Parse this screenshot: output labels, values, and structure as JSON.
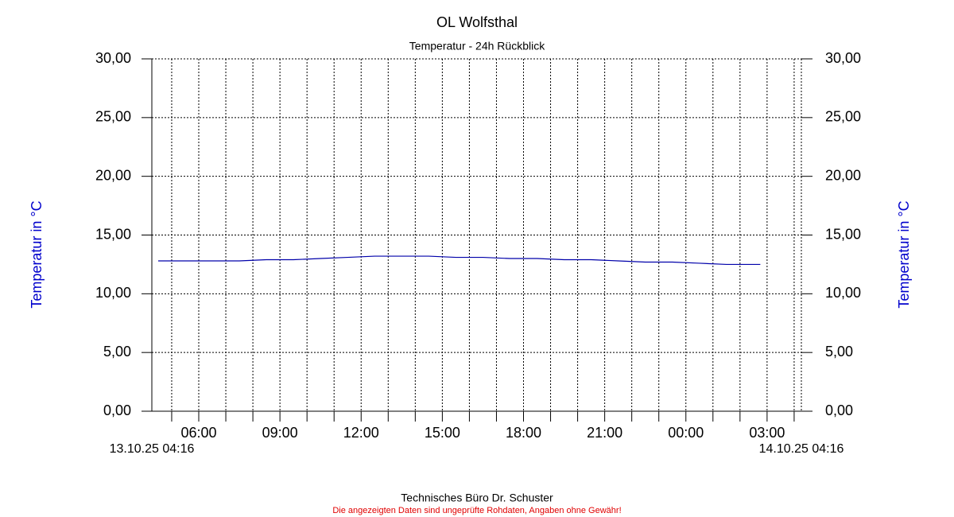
{
  "chart_data": {
    "type": "line",
    "title": "OL Wolfsthal",
    "subtitle": "Temperatur - 24h Rückblick",
    "ylabel": "Temperatur in °C",
    "y2label": "Temperatur in °C",
    "footer": "Technisches Büro Dr. Schuster",
    "disclaimer": "Die angezeigten Daten sind ungeprüfte Rohdaten, Angaben ohne Gewähr!",
    "grid": true,
    "xlim": [
      {
        "value": "2025-10-13T04:16",
        "label": "13.10.25 04:16"
      },
      {
        "value": "2025-10-14T04:16",
        "label": "14.10.25 04:16"
      }
    ],
    "xticks": [
      {
        "value": "2025-10-13T05:00",
        "label": null
      },
      {
        "value": "2025-10-13T06:00",
        "label": "06:00"
      },
      {
        "value": "2025-10-13T07:00",
        "label": null
      },
      {
        "value": "2025-10-13T08:00",
        "label": null
      },
      {
        "value": "2025-10-13T09:00",
        "label": "09:00"
      },
      {
        "value": "2025-10-13T10:00",
        "label": null
      },
      {
        "value": "2025-10-13T11:00",
        "label": null
      },
      {
        "value": "2025-10-13T12:00",
        "label": "12:00"
      },
      {
        "value": "2025-10-13T13:00",
        "label": null
      },
      {
        "value": "2025-10-13T14:00",
        "label": null
      },
      {
        "value": "2025-10-13T15:00",
        "label": "15:00"
      },
      {
        "value": "2025-10-13T16:00",
        "label": null
      },
      {
        "value": "2025-10-13T17:00",
        "label": null
      },
      {
        "value": "2025-10-13T18:00",
        "label": "18:00"
      },
      {
        "value": "2025-10-13T19:00",
        "label": null
      },
      {
        "value": "2025-10-13T20:00",
        "label": null
      },
      {
        "value": "2025-10-13T21:00",
        "label": "21:00"
      },
      {
        "value": "2025-10-13T22:00",
        "label": null
      },
      {
        "value": "2025-10-13T23:00",
        "label": null
      },
      {
        "value": "2025-10-14T00:00",
        "label": "00:00"
      },
      {
        "value": "2025-10-14T01:00",
        "label": null
      },
      {
        "value": "2025-10-14T02:00",
        "label": null
      },
      {
        "value": "2025-10-14T03:00",
        "label": "03:00"
      },
      {
        "value": "2025-10-14T04:00",
        "label": null
      }
    ],
    "ylim": [
      0,
      30
    ],
    "yticks": [
      {
        "value": 0,
        "label": "0,00"
      },
      {
        "value": 5,
        "label": "5,00"
      },
      {
        "value": 10,
        "label": "10,00"
      },
      {
        "value": 15,
        "label": "15,00"
      },
      {
        "value": 20,
        "label": "20,00"
      },
      {
        "value": 25,
        "label": "25,00"
      },
      {
        "value": 30,
        "label": "30,00"
      }
    ],
    "y2lim": [
      0,
      30
    ],
    "y2ticks": [
      {
        "value": 0,
        "label": "0,00"
      },
      {
        "value": 5,
        "label": "5,00"
      },
      {
        "value": 10,
        "label": "10,00"
      },
      {
        "value": 15,
        "label": "15,00"
      },
      {
        "value": 20,
        "label": "20,00"
      },
      {
        "value": 25,
        "label": "25,00"
      },
      {
        "value": 30,
        "label": "30,00"
      }
    ],
    "x": [
      "2025-10-13T04:30",
      "2025-10-13T05:30",
      "2025-10-13T06:30",
      "2025-10-13T07:30",
      "2025-10-13T08:30",
      "2025-10-13T09:30",
      "2025-10-13T10:30",
      "2025-10-13T11:30",
      "2025-10-13T12:30",
      "2025-10-13T13:30",
      "2025-10-13T14:30",
      "2025-10-13T15:30",
      "2025-10-13T16:30",
      "2025-10-13T17:30",
      "2025-10-13T18:30",
      "2025-10-13T19:30",
      "2025-10-13T20:30",
      "2025-10-13T21:30",
      "2025-10-13T22:30",
      "2025-10-13T23:30",
      "2025-10-14T00:30",
      "2025-10-14T01:30",
      "2025-10-14T02:30",
      "2025-10-14T02:45"
    ],
    "series": [
      {
        "color": "#0000aa",
        "values": [
          12.8,
          12.8,
          12.8,
          12.8,
          12.9,
          12.9,
          13.0,
          13.1,
          13.2,
          13.2,
          13.2,
          13.1,
          13.1,
          13.0,
          13.0,
          12.9,
          12.9,
          12.8,
          12.7,
          12.7,
          12.6,
          12.5,
          12.5,
          12.5
        ]
      }
    ]
  }
}
